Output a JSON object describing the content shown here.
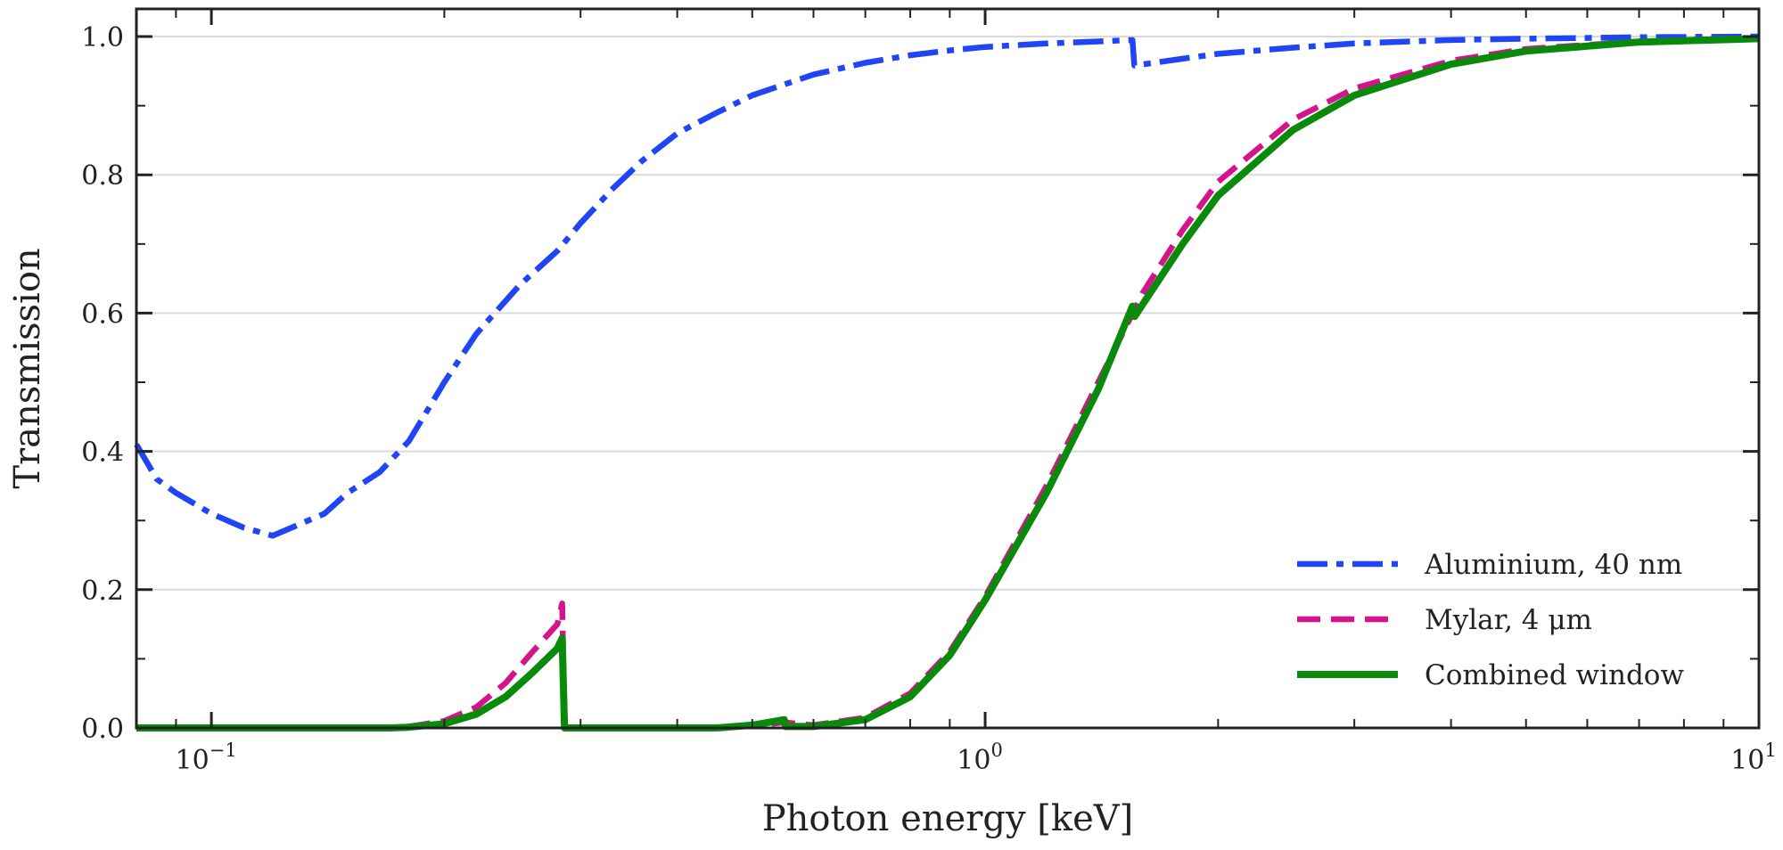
{
  "chart_data": {
    "type": "line",
    "title": "",
    "xlabel": "Photon energy [keV]",
    "ylabel": "Transmission",
    "xscale": "log",
    "xlim": [
      0.08,
      10
    ],
    "ylim": [
      0,
      1.04
    ],
    "grid": "horizontal",
    "legend_position": "lower-right",
    "x_ticks": [
      {
        "value": 0.1,
        "base": "10",
        "exp": "−1"
      },
      {
        "value": 1,
        "base": "10",
        "exp": "0"
      },
      {
        "value": 10,
        "base": "10",
        "exp": "1"
      }
    ],
    "y_ticks": [
      {
        "value": 0.0,
        "label": "0.0"
      },
      {
        "value": 0.2,
        "label": "0.2"
      },
      {
        "value": 0.4,
        "label": "0.4"
      },
      {
        "value": 0.6,
        "label": "0.6"
      },
      {
        "value": 0.8,
        "label": "0.8"
      },
      {
        "value": 1.0,
        "label": "1.0"
      }
    ],
    "series": [
      {
        "name": "Aluminium, 40 nm",
        "color": "#1f45f5",
        "style": "dashdot",
        "points": [
          [
            0.08,
            0.41
          ],
          [
            0.085,
            0.36
          ],
          [
            0.09,
            0.34
          ],
          [
            0.1,
            0.31
          ],
          [
            0.11,
            0.29
          ],
          [
            0.12,
            0.278
          ],
          [
            0.14,
            0.31
          ],
          [
            0.15,
            0.34
          ],
          [
            0.165,
            0.37
          ],
          [
            0.18,
            0.415
          ],
          [
            0.2,
            0.5
          ],
          [
            0.22,
            0.57
          ],
          [
            0.25,
            0.64
          ],
          [
            0.28,
            0.69
          ],
          [
            0.3,
            0.73
          ],
          [
            0.33,
            0.78
          ],
          [
            0.36,
            0.82
          ],
          [
            0.4,
            0.86
          ],
          [
            0.45,
            0.89
          ],
          [
            0.5,
            0.915
          ],
          [
            0.6,
            0.945
          ],
          [
            0.7,
            0.962
          ],
          [
            0.8,
            0.973
          ],
          [
            0.9,
            0.98
          ],
          [
            1.0,
            0.985
          ],
          [
            1.2,
            0.99
          ],
          [
            1.4,
            0.993
          ],
          [
            1.55,
            0.995
          ],
          [
            1.559,
            0.958
          ],
          [
            1.8,
            0.968
          ],
          [
            2.0,
            0.975
          ],
          [
            2.5,
            0.984
          ],
          [
            3.0,
            0.99
          ],
          [
            4.0,
            0.995
          ],
          [
            5.0,
            0.997
          ],
          [
            7.0,
            0.999
          ],
          [
            10.0,
            1.0
          ]
        ]
      },
      {
        "name": "Mylar, 4 μm",
        "color": "#d4148a",
        "style": "dashed",
        "points": [
          [
            0.08,
            0.0
          ],
          [
            0.17,
            0.0
          ],
          [
            0.18,
            0.002
          ],
          [
            0.2,
            0.01
          ],
          [
            0.22,
            0.03
          ],
          [
            0.24,
            0.065
          ],
          [
            0.26,
            0.11
          ],
          [
            0.28,
            0.15
          ],
          [
            0.284,
            0.18
          ],
          [
            0.286,
            0.0
          ],
          [
            0.45,
            0.0
          ],
          [
            0.5,
            0.003
          ],
          [
            0.55,
            0.008
          ],
          [
            0.6,
            0.004
          ],
          [
            0.7,
            0.015
          ],
          [
            0.8,
            0.05
          ],
          [
            0.9,
            0.11
          ],
          [
            1.0,
            0.19
          ],
          [
            1.2,
            0.35
          ],
          [
            1.4,
            0.5
          ],
          [
            1.6,
            0.63
          ],
          [
            1.8,
            0.72
          ],
          [
            2.0,
            0.79
          ],
          [
            2.5,
            0.88
          ],
          [
            3.0,
            0.925
          ],
          [
            4.0,
            0.965
          ],
          [
            5.0,
            0.982
          ],
          [
            7.0,
            0.993
          ],
          [
            10.0,
            0.998
          ]
        ]
      },
      {
        "name": "Combined window",
        "color": "#0a8a0a",
        "style": "solid",
        "points": [
          [
            0.08,
            0.0
          ],
          [
            0.17,
            0.0
          ],
          [
            0.18,
            0.001
          ],
          [
            0.2,
            0.006
          ],
          [
            0.22,
            0.02
          ],
          [
            0.24,
            0.045
          ],
          [
            0.26,
            0.08
          ],
          [
            0.28,
            0.115
          ],
          [
            0.284,
            0.13
          ],
          [
            0.286,
            0.0
          ],
          [
            0.45,
            0.0
          ],
          [
            0.5,
            0.004
          ],
          [
            0.55,
            0.012
          ],
          [
            0.552,
            0.002
          ],
          [
            0.6,
            0.002
          ],
          [
            0.7,
            0.012
          ],
          [
            0.8,
            0.045
          ],
          [
            0.9,
            0.105
          ],
          [
            1.0,
            0.185
          ],
          [
            1.2,
            0.34
          ],
          [
            1.4,
            0.49
          ],
          [
            1.55,
            0.61
          ],
          [
            1.56,
            0.595
          ],
          [
            1.8,
            0.7
          ],
          [
            2.0,
            0.77
          ],
          [
            2.5,
            0.865
          ],
          [
            3.0,
            0.915
          ],
          [
            4.0,
            0.96
          ],
          [
            5.0,
            0.979
          ],
          [
            7.0,
            0.992
          ],
          [
            10.0,
            0.997
          ]
        ]
      }
    ]
  }
}
